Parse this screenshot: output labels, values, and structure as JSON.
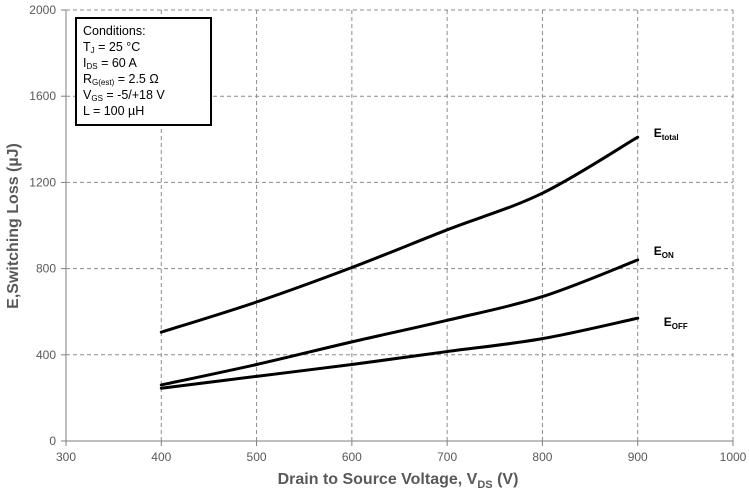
{
  "chart_data": {
    "type": "line",
    "xlabel": "Drain to Source Voltage, V",
    "xlabel_sub": "DS",
    "xlabel_suffix": " (V)",
    "ylabel": "E,Switching Loss (µJ)",
    "xlim": [
      300,
      1000
    ],
    "ylim": [
      0,
      2000
    ],
    "xticks": [
      300,
      400,
      500,
      600,
      700,
      800,
      900,
      1000
    ],
    "yticks": [
      0,
      400,
      800,
      1200,
      1600,
      2000
    ],
    "grid": "dashed",
    "series": [
      {
        "name": "E_total",
        "label_main": "E",
        "label_sub": "total",
        "x": [
          400,
          500,
          600,
          700,
          800,
          900
        ],
        "values": [
          505,
          645,
          805,
          980,
          1150,
          1410
        ]
      },
      {
        "name": "E_ON",
        "label_main": "E",
        "label_sub": "ON",
        "x": [
          400,
          500,
          600,
          700,
          800,
          900
        ],
        "values": [
          260,
          355,
          460,
          560,
          670,
          840
        ]
      },
      {
        "name": "E_OFF",
        "label_main": "E",
        "label_sub": "OFF",
        "x": [
          400,
          500,
          600,
          700,
          800,
          900
        ],
        "values": [
          245,
          300,
          355,
          415,
          475,
          570
        ]
      }
    ],
    "conditions": {
      "title": "Conditions:",
      "tj": {
        "main": "T",
        "sub": "J",
        "rest": " = 25 °C"
      },
      "ids": {
        "main": "I",
        "sub": "DS",
        "rest": " = 60 A"
      },
      "rg": {
        "main": "R",
        "sub": "G(est)",
        "rest": " = 2.5 Ω"
      },
      "vgs": {
        "main": "V",
        "sub": "GS",
        "rest": " = -5/+18 V"
      },
      "l": {
        "text": "L = 100 µH"
      }
    }
  }
}
